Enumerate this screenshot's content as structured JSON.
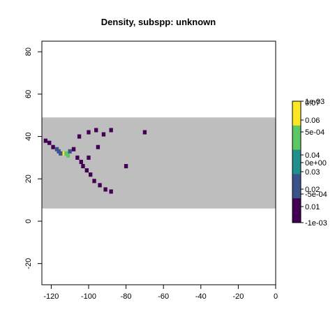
{
  "chart_data": {
    "type": "heatmap",
    "title": "Density, subspp: unknown",
    "xlabel": "",
    "ylabel": "",
    "xlim": [
      -125,
      0
    ],
    "ylim": [
      -30,
      85
    ],
    "x_ticks": [
      -120,
      -100,
      -80,
      -60,
      -40,
      -20,
      0
    ],
    "y_ticks": [
      -20,
      0,
      20,
      40,
      60,
      80
    ],
    "x_tick_labels": [
      "-120",
      "-100",
      "-80",
      "-60",
      "-40",
      "-20",
      "0"
    ],
    "y_tick_labels": [
      "-20",
      "0",
      "20",
      "40",
      "60",
      "80"
    ],
    "grid": false,
    "background_band": {
      "lat_min": 6,
      "lat_max": 49,
      "lon_min": -125,
      "lon_max": 0,
      "color": "#bebebe"
    },
    "color_scale": [
      "#440154",
      "#3b528b",
      "#21908c",
      "#5dc863",
      "#fde725"
    ],
    "density_cells": [
      {
        "lon": -123,
        "lat": 38,
        "value": 0.004
      },
      {
        "lon": -121,
        "lat": 37,
        "value": 0.006
      },
      {
        "lon": -119,
        "lat": 35,
        "value": 0.01
      },
      {
        "lon": -117,
        "lat": 34,
        "value": 0.018
      },
      {
        "lon": -116,
        "lat": 33,
        "value": 0.02
      },
      {
        "lon": -115,
        "lat": 32,
        "value": 0.022
      },
      {
        "lon": -113,
        "lat": 32,
        "value": 0.06
      },
      {
        "lon": -112,
        "lat": 32,
        "value": 0.05
      },
      {
        "lon": -111,
        "lat": 31,
        "value": 0.045
      },
      {
        "lon": -110,
        "lat": 33,
        "value": 0.016
      },
      {
        "lon": -108,
        "lat": 34,
        "value": 0.01
      },
      {
        "lon": -106,
        "lat": 30,
        "value": 0.008
      },
      {
        "lon": -104,
        "lat": 28,
        "value": 0.007
      },
      {
        "lon": -103,
        "lat": 26,
        "value": 0.006
      },
      {
        "lon": -101,
        "lat": 24,
        "value": 0.006
      },
      {
        "lon": -99,
        "lat": 22,
        "value": 0.005
      },
      {
        "lon": -97,
        "lat": 19,
        "value": 0.005
      },
      {
        "lon": -94,
        "lat": 17,
        "value": 0.004
      },
      {
        "lon": -91,
        "lat": 15,
        "value": 0.004
      },
      {
        "lon": -88,
        "lat": 14,
        "value": 0.003
      },
      {
        "lon": -105,
        "lat": 40,
        "value": 0.004
      },
      {
        "lon": -100,
        "lat": 42,
        "value": 0.003
      },
      {
        "lon": -96,
        "lat": 43,
        "value": 0.003
      },
      {
        "lon": -92,
        "lat": 41,
        "value": 0.003
      },
      {
        "lon": -88,
        "lat": 43,
        "value": 0.003
      },
      {
        "lon": -95,
        "lat": 35,
        "value": 0.003
      },
      {
        "lon": -100,
        "lat": 30,
        "value": 0.004
      },
      {
        "lon": -80,
        "lat": 26,
        "value": 0.003
      },
      {
        "lon": -70,
        "lat": 42,
        "value": 0.003
      }
    ]
  },
  "legends": [
    {
      "bar_colors": [
        "#440154",
        "#3b528b",
        "#21908c",
        "#5dc863",
        "#fde725"
      ],
      "labels_right": [
        "0.07",
        "0.06",
        "0.04",
        "0.03",
        "0.02",
        "0.01"
      ],
      "labels_overlay": [
        "1e-03",
        "5e-04",
        "0e+00",
        "-5e-04",
        "-1e-03"
      ]
    }
  ]
}
